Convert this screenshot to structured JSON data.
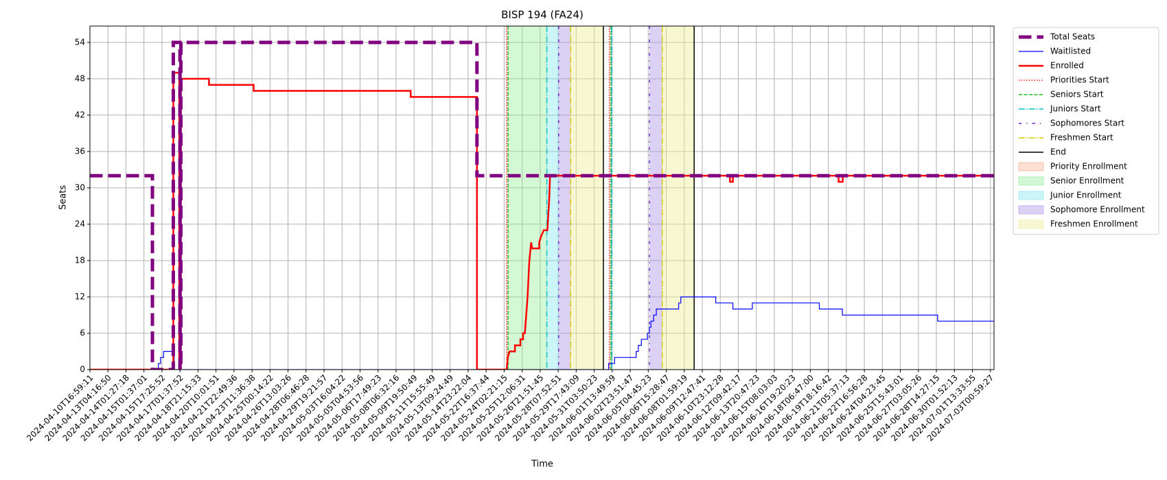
{
  "chart_data": {
    "type": "line",
    "title": "BISP 194 (FA24)",
    "xlabel": "Time",
    "ylabel": "Seats",
    "xlim": [
      0,
      50.2
    ],
    "ylim": [
      0,
      56.7
    ],
    "grid": true,
    "legend": "outside-upper-right",
    "xticks": [
      {
        "value": 0,
        "label": "2024-04-10T16:59:11"
      },
      {
        "value": 1,
        "label": "2024-04-13T04:16:50"
      },
      {
        "value": 2,
        "label": "2024-04-14T01:27:18"
      },
      {
        "value": 3,
        "label": "2024-04-15T01:37:01"
      },
      {
        "value": 4,
        "label": "2024-04-15T17:25:52"
      },
      {
        "value": 5,
        "label": "2024-04-17T01:37:52"
      },
      {
        "value": 6,
        "label": "2024-04-18T21:15:33"
      },
      {
        "value": 7,
        "label": "2024-04-20T10:01:51"
      },
      {
        "value": 8,
        "label": "2024-04-21T22:49:36"
      },
      {
        "value": 9,
        "label": "2024-04-23T11:36:38"
      },
      {
        "value": 10,
        "label": "2024-04-25T00:14:22"
      },
      {
        "value": 11,
        "label": "2024-04-26T13:03:26"
      },
      {
        "value": 12,
        "label": "2024-04-28T06:46:28"
      },
      {
        "value": 13,
        "label": "2024-04-29T19:21:57"
      },
      {
        "value": 14,
        "label": "2024-05-03T16:04:22"
      },
      {
        "value": 15,
        "label": "2024-05-05T04:53:56"
      },
      {
        "value": 16,
        "label": "2024-05-06T17:49:23"
      },
      {
        "value": 17,
        "label": "2024-05-08T06:32:16"
      },
      {
        "value": 18,
        "label": "2024-05-09T19:50:49"
      },
      {
        "value": 19,
        "label": "2024-05-11T15:55:49"
      },
      {
        "value": 20,
        "label": "2024-05-13T09:24:49"
      },
      {
        "value": 21,
        "label": "2024-05-14T23:22:04"
      },
      {
        "value": 22,
        "label": "2024-05-22T16:37:44"
      },
      {
        "value": 23,
        "label": "2024-05-24T02:21:15"
      },
      {
        "value": 24,
        "label": "2024-05-25T12:06:31"
      },
      {
        "value": 25,
        "label": "2024-05-26T21:51:45"
      },
      {
        "value": 26,
        "label": "2024-05-28T07:52:51"
      },
      {
        "value": 27,
        "label": "2024-05-29T17:43:09"
      },
      {
        "value": 28,
        "label": "2024-05-31T03:50:23"
      },
      {
        "value": 29,
        "label": "2024-06-01T13:49:59"
      },
      {
        "value": 30,
        "label": "2024-06-02T23:51:47"
      },
      {
        "value": 31,
        "label": "2024-06-05T04:45:23"
      },
      {
        "value": 32,
        "label": "2024-06-06T15:28:47"
      },
      {
        "value": 33,
        "label": "2024-06-08T01:59:19"
      },
      {
        "value": 34,
        "label": "2024-06-09T12:47:41"
      },
      {
        "value": 35,
        "label": "2024-06-10T23:12:28"
      },
      {
        "value": 36,
        "label": "2024-06-12T09:42:17"
      },
      {
        "value": 37,
        "label": "2024-06-13T20:47:23"
      },
      {
        "value": 38,
        "label": "2024-06-15T08:03:03"
      },
      {
        "value": 39,
        "label": "2024-06-16T19:20:23"
      },
      {
        "value": 40,
        "label": "2024-06-18T06:47:00"
      },
      {
        "value": 41,
        "label": "2024-06-19T18:16:42"
      },
      {
        "value": 42,
        "label": "2024-06-21T05:37:13"
      },
      {
        "value": 43,
        "label": "2024-06-22T16:56:28"
      },
      {
        "value": 44,
        "label": "2024-06-24T04:23:45"
      },
      {
        "value": 45,
        "label": "2024-06-25T15:43:01"
      },
      {
        "value": 46,
        "label": "2024-06-27T03:05:26"
      },
      {
        "value": 47,
        "label": "2024-06-28T14:27:15"
      },
      {
        "value": 48,
        "label": "2024-06-30T01:52:13"
      },
      {
        "value": 49,
        "label": "2024-07-01T13:33:55"
      },
      {
        "value": 50,
        "label": "2024-07-03T00:59:27"
      }
    ],
    "yticks": [
      0,
      6,
      12,
      18,
      24,
      30,
      36,
      42,
      48,
      54
    ],
    "spans": [
      {
        "name": "Priority Enrollment",
        "color": "#f4a582",
        "opacity": 0.35,
        "ranges": [
          [
            23.14,
            23.22
          ],
          [
            28.84,
            28.93
          ]
        ]
      },
      {
        "name": "Senior Enrollment",
        "color": "#90ee90",
        "opacity": 0.4,
        "ranges": [
          [
            23.22,
            25.37
          ],
          [
            28.93,
            28.97
          ]
        ]
      },
      {
        "name": "Junior Enrollment",
        "color": "#7fe5ee",
        "opacity": 0.4,
        "ranges": [
          [
            25.37,
            26.03
          ],
          [
            28.97,
            29.01
          ]
        ]
      },
      {
        "name": "Sophomore Enrollment",
        "color": "#b09ae6",
        "opacity": 0.45,
        "ranges": [
          [
            26.03,
            26.69
          ],
          [
            31.07,
            31.78
          ]
        ]
      },
      {
        "name": "Freshmen Enrollment",
        "color": "#eeee99",
        "opacity": 0.45,
        "ranges": [
          [
            26.69,
            28.51
          ],
          [
            31.78,
            33.55
          ]
        ]
      }
    ],
    "vlines": [
      {
        "name": "Priorities Start",
        "color": "#ff0000",
        "style": "dotted",
        "width": 1.4,
        "x": [
          23.14,
          28.84
        ]
      },
      {
        "name": "Seniors Start",
        "color": "#22bb22",
        "style": "dashed",
        "width": 1.4,
        "x": [
          23.22,
          28.93
        ]
      },
      {
        "name": "Juniors Start",
        "color": "#00bfbf",
        "style": "dashdot",
        "width": 1.4,
        "x": [
          25.37,
          28.97
        ]
      },
      {
        "name": "Sophomores Start",
        "color": "#6a1fd0",
        "style": "dashdot-loose",
        "width": 1.4,
        "x": [
          26.03,
          31.07
        ]
      },
      {
        "name": "Freshmen Start",
        "color": "#d8c800",
        "style": "dashdot",
        "width": 1.4,
        "x": [
          26.69,
          31.78
        ]
      },
      {
        "name": "End",
        "color": "#000000",
        "style": "solid",
        "width": 1.5,
        "x": [
          28.51,
          33.55
        ]
      }
    ],
    "series": [
      {
        "name": "Waitlisted",
        "color": "#0000ff",
        "style": "solid",
        "width": 1.2,
        "x": [
          0,
          3.8,
          3.8,
          3.92,
          3.92,
          4.09,
          4.09,
          4.68,
          4.68,
          28.8,
          28.8,
          29.13,
          29.13,
          30.33,
          30.33,
          30.45,
          30.45,
          30.62,
          30.62,
          30.95,
          30.95,
          31.07,
          31.07,
          31.15,
          31.15,
          31.3,
          31.3,
          31.45,
          31.45,
          32.69,
          32.69,
          32.81,
          32.81,
          34.75,
          34.75,
          35.7,
          35.7,
          36.78,
          36.78,
          40.5,
          40.5,
          41.78,
          41.78,
          47.07,
          47.07,
          50.2
        ],
        "values": [
          0,
          0,
          1,
          1,
          2,
          2,
          3,
          3,
          0,
          0,
          1,
          1,
          2,
          2,
          3,
          3,
          4,
          4,
          5,
          5,
          6,
          6,
          7,
          7,
          8,
          8,
          9,
          9,
          10,
          10,
          11,
          11,
          12,
          12,
          11,
          11,
          10,
          10,
          11,
          11,
          10,
          10,
          9,
          9,
          8,
          8
        ]
      },
      {
        "name": "Enrolled",
        "color": "#ff0000",
        "style": "solid",
        "width": 2.5,
        "x": [
          0,
          4.63,
          4.63,
          4.96,
          4.96,
          5.05,
          5.05,
          6.61,
          6.61,
          9.09,
          9.09,
          17.81,
          17.81,
          21.49,
          21.49,
          23.14,
          23.2,
          23.3,
          23.6,
          23.6,
          23.9,
          23.9,
          24.05,
          24.05,
          24.15,
          24.3,
          24.4,
          24.5,
          24.55,
          24.95,
          24.95,
          25.05,
          25.2,
          25.4,
          25.5,
          25.55,
          35.54,
          35.54,
          35.7,
          35.7,
          41.57,
          41.57,
          41.8,
          41.8,
          50.2
        ],
        "values": [
          0,
          0,
          49,
          49,
          0,
          0,
          48,
          48,
          47,
          47,
          46,
          46,
          45,
          45,
          0,
          0,
          2,
          3,
          3,
          4,
          4,
          5,
          5,
          6,
          6,
          12,
          18,
          21,
          20,
          20,
          21,
          22,
          23,
          23,
          28,
          32,
          32,
          31,
          31,
          32,
          32,
          31,
          31,
          32,
          32
        ]
      },
      {
        "name": "Total Seats",
        "color": "#800080",
        "style": "dashed",
        "width": 5,
        "x": [
          0,
          3.47,
          3.47,
          4.63,
          4.63,
          5.0,
          5.0,
          5.05,
          5.05,
          21.49,
          21.49,
          50.2
        ],
        "values": [
          32,
          32,
          0,
          0,
          54,
          54,
          0,
          0,
          54,
          54,
          32,
          32
        ]
      }
    ],
    "legend_order": [
      "series.2",
      "series.0",
      "series.1",
      "vlines.0",
      "vlines.1",
      "vlines.2",
      "vlines.3",
      "vlines.4",
      "vlines.5",
      "spans.0",
      "spans.1",
      "spans.2",
      "spans.3",
      "spans.4"
    ]
  }
}
